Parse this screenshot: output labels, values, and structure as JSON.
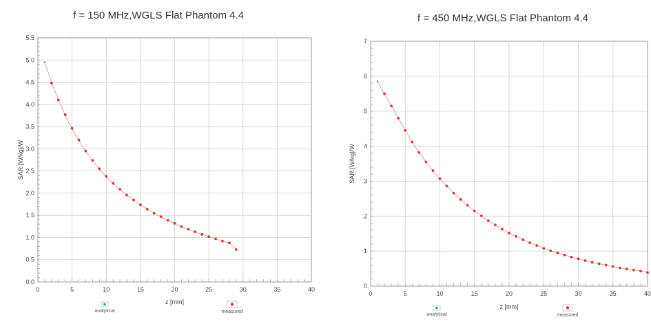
{
  "chart_data": [
    {
      "type": "scatter",
      "title": "f = 150 MHz,WGLS Flat Phantom 4.4",
      "xlabel": "z [mm]",
      "ylabel": "SAR [W/kg]/W",
      "xlim": [
        0,
        40
      ],
      "ylim": [
        0,
        5.5
      ],
      "x_ticks": [
        "0",
        "5",
        "10",
        "15",
        "20",
        "25",
        "30",
        "35",
        "40"
      ],
      "y_ticks": [
        "0.0",
        "0.5",
        "1.0",
        "1.5",
        "2.0",
        "2.5",
        "3.0",
        "3.5",
        "4.0",
        "4.5",
        "5.0",
        "5.5"
      ],
      "grid": true,
      "legend": "bottom",
      "series": [
        {
          "name": "analytical",
          "color": "#2aa58a",
          "x": [
            1,
            2,
            3,
            4,
            5,
            6,
            7,
            8,
            9,
            10,
            11,
            12,
            13,
            14,
            15,
            16,
            17,
            18,
            19,
            20,
            21,
            22,
            23,
            24,
            25,
            26,
            27,
            28,
            29
          ],
          "values": [
            4.95,
            4.5,
            4.1,
            3.75,
            3.45,
            3.18,
            2.94,
            2.73,
            2.54,
            2.37,
            2.22,
            2.08,
            1.96,
            1.84,
            1.74,
            1.64,
            1.55,
            1.47,
            1.39,
            1.32,
            1.25,
            1.19,
            1.13,
            1.07,
            1.02,
            0.97,
            0.92,
            0.88,
            0.74
          ]
        },
        {
          "name": "measured",
          "color": "#d23a3a",
          "x": [
            2,
            3,
            4,
            5,
            6,
            7,
            8,
            9,
            10,
            11,
            12,
            13,
            14,
            15,
            16,
            17,
            18,
            19,
            20,
            21,
            22,
            23,
            24,
            25,
            26,
            27,
            28,
            29
          ],
          "values": [
            4.48,
            4.1,
            3.77,
            3.46,
            3.2,
            2.95,
            2.74,
            2.55,
            2.38,
            2.22,
            2.09,
            1.96,
            1.85,
            1.74,
            1.64,
            1.55,
            1.47,
            1.39,
            1.32,
            1.25,
            1.19,
            1.13,
            1.07,
            1.02,
            0.97,
            0.92,
            0.88,
            0.73
          ]
        }
      ]
    },
    {
      "type": "scatter",
      "title": "f = 450 MHz,WGLS Flat Phantom 4.4",
      "xlabel": "z [mm]",
      "ylabel": "SAR [W/kg]/W",
      "xlim": [
        0,
        40
      ],
      "ylim": [
        0,
        7
      ],
      "x_ticks": [
        "0",
        "5",
        "10",
        "15",
        "20",
        "25",
        "30",
        "35",
        "40"
      ],
      "y_ticks": [
        "0",
        "1",
        "2",
        "3",
        "4",
        "5",
        "6",
        "7"
      ],
      "grid": true,
      "legend": "bottom",
      "series": [
        {
          "name": "analytical",
          "color": "#2aa58a",
          "x": [
            1,
            2,
            3,
            4,
            5,
            6,
            7,
            8,
            9,
            10,
            11,
            12,
            13,
            14,
            15,
            16,
            17,
            18,
            19,
            20,
            21,
            22,
            23,
            24,
            25,
            26,
            27,
            28,
            29,
            30,
            31,
            32,
            33,
            34,
            35,
            36,
            37,
            38,
            39,
            40
          ],
          "values": [
            5.85,
            5.5,
            5.15,
            4.8,
            4.45,
            4.12,
            3.82,
            3.55,
            3.3,
            3.07,
            2.86,
            2.66,
            2.48,
            2.31,
            2.15,
            2.01,
            1.87,
            1.75,
            1.63,
            1.52,
            1.42,
            1.33,
            1.24,
            1.16,
            1.08,
            1.01,
            0.95,
            0.89,
            0.83,
            0.78,
            0.73,
            0.68,
            0.64,
            0.6,
            0.56,
            0.52,
            0.49,
            0.46,
            0.43,
            0.4
          ]
        },
        {
          "name": "measured",
          "color": "#d23a3a",
          "x": [
            2,
            3,
            4,
            5,
            6,
            7,
            8,
            9,
            10,
            11,
            12,
            13,
            14,
            15,
            16,
            17,
            18,
            19,
            20,
            21,
            22,
            23,
            24,
            25,
            26,
            27,
            28,
            29,
            30,
            31,
            32,
            33,
            34,
            35,
            36,
            37,
            38,
            39,
            40
          ],
          "values": [
            5.5,
            5.15,
            4.8,
            4.45,
            4.12,
            3.82,
            3.55,
            3.3,
            3.07,
            2.86,
            2.66,
            2.48,
            2.31,
            2.15,
            2.01,
            1.87,
            1.75,
            1.63,
            1.52,
            1.42,
            1.33,
            1.24,
            1.16,
            1.08,
            1.01,
            0.95,
            0.89,
            0.83,
            0.78,
            0.73,
            0.68,
            0.64,
            0.6,
            0.56,
            0.52,
            0.49,
            0.46,
            0.43,
            0.39
          ]
        }
      ]
    }
  ]
}
